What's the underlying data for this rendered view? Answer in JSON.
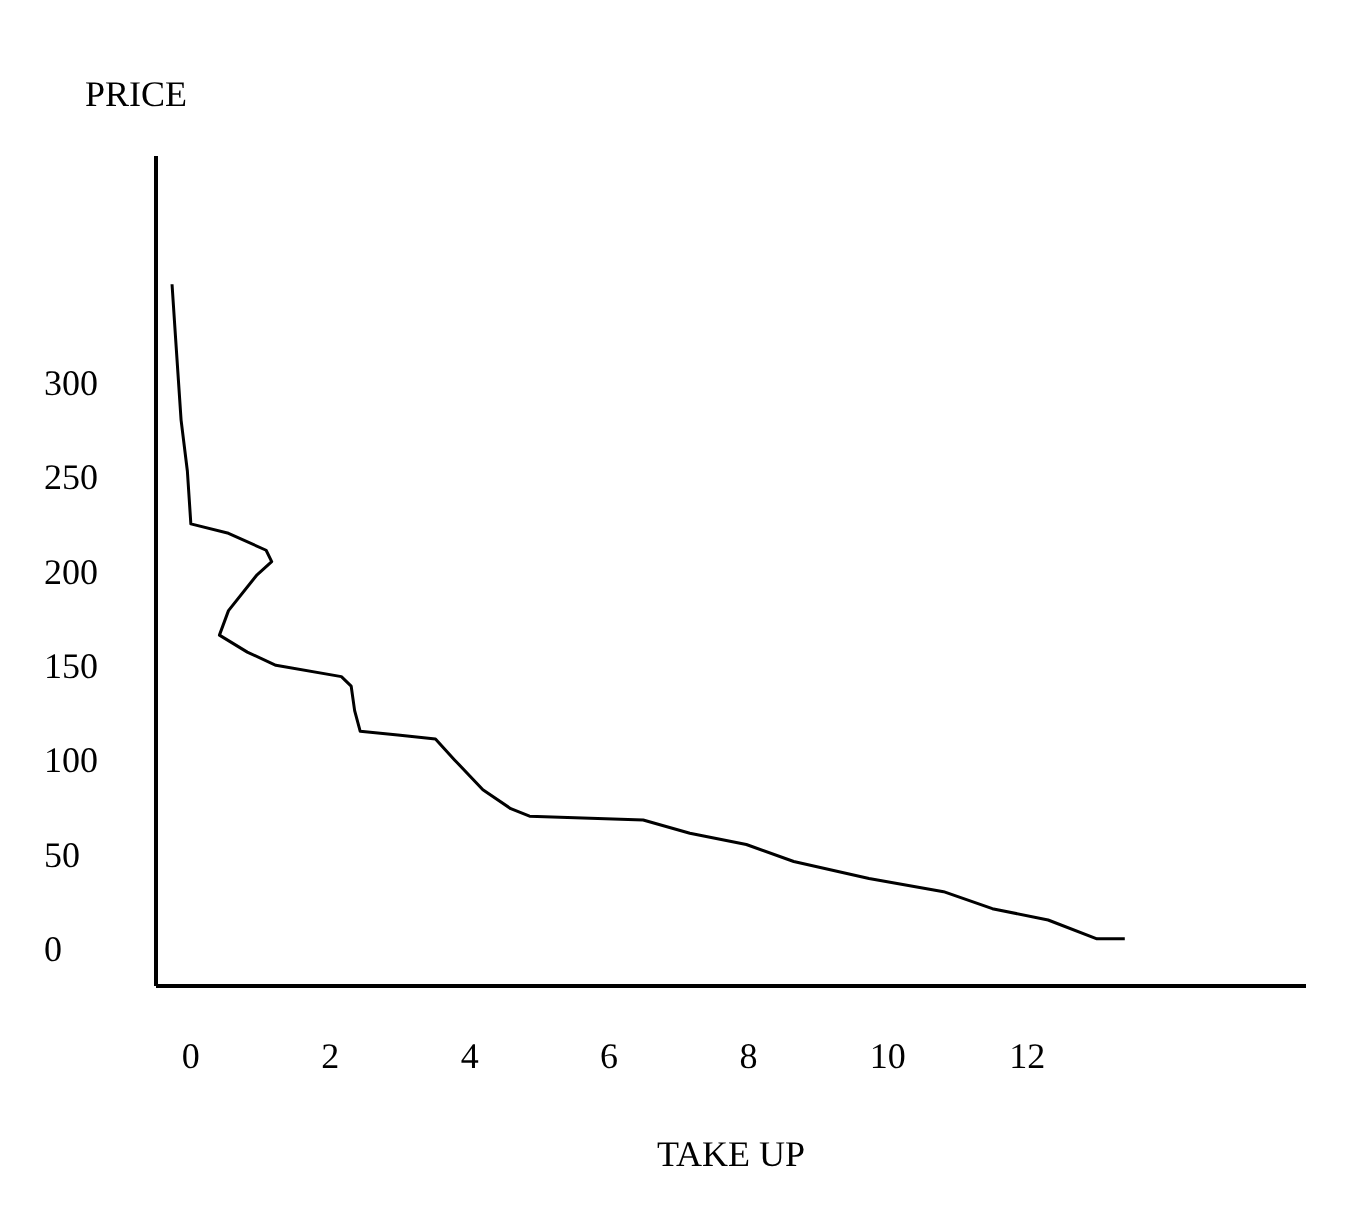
{
  "chart_data": {
    "type": "line",
    "xlabel": "TAKE UP",
    "ylabel": "PRICE",
    "line_style": "solid",
    "x": [
      -0.27,
      -0.22,
      -0.14,
      -0.05,
      0,
      0.54,
      1.08,
      1.16,
      0.95,
      0.54,
      0.41,
      0.81,
      1.22,
      2.16,
      2.3,
      2.35,
      2.43,
      2.97,
      3.51,
      3.78,
      4.19,
      4.59,
      4.86,
      6.49,
      7.16,
      7.97,
      8.65,
      9.73,
      10.8,
      11.5,
      12.3,
      13,
      13.4
    ],
    "series": [
      {
        "color": "#000000",
        "values": [
          352,
          324,
          280,
          253,
          225,
          220,
          211,
          205,
          198,
          179,
          166,
          157,
          150,
          144,
          139,
          126,
          115,
          113,
          111,
          100,
          84,
          74,
          70,
          68,
          61,
          55,
          46,
          37,
          30,
          21,
          15,
          5,
          5
        ]
      }
    ],
    "xlim": [
      -0.5,
      16
    ],
    "ylim": [
      -20,
      420
    ],
    "xticks": [
      0,
      2,
      4,
      6,
      8,
      10,
      12
    ],
    "yticks": [
      0,
      50,
      100,
      150,
      200,
      250,
      300
    ]
  }
}
